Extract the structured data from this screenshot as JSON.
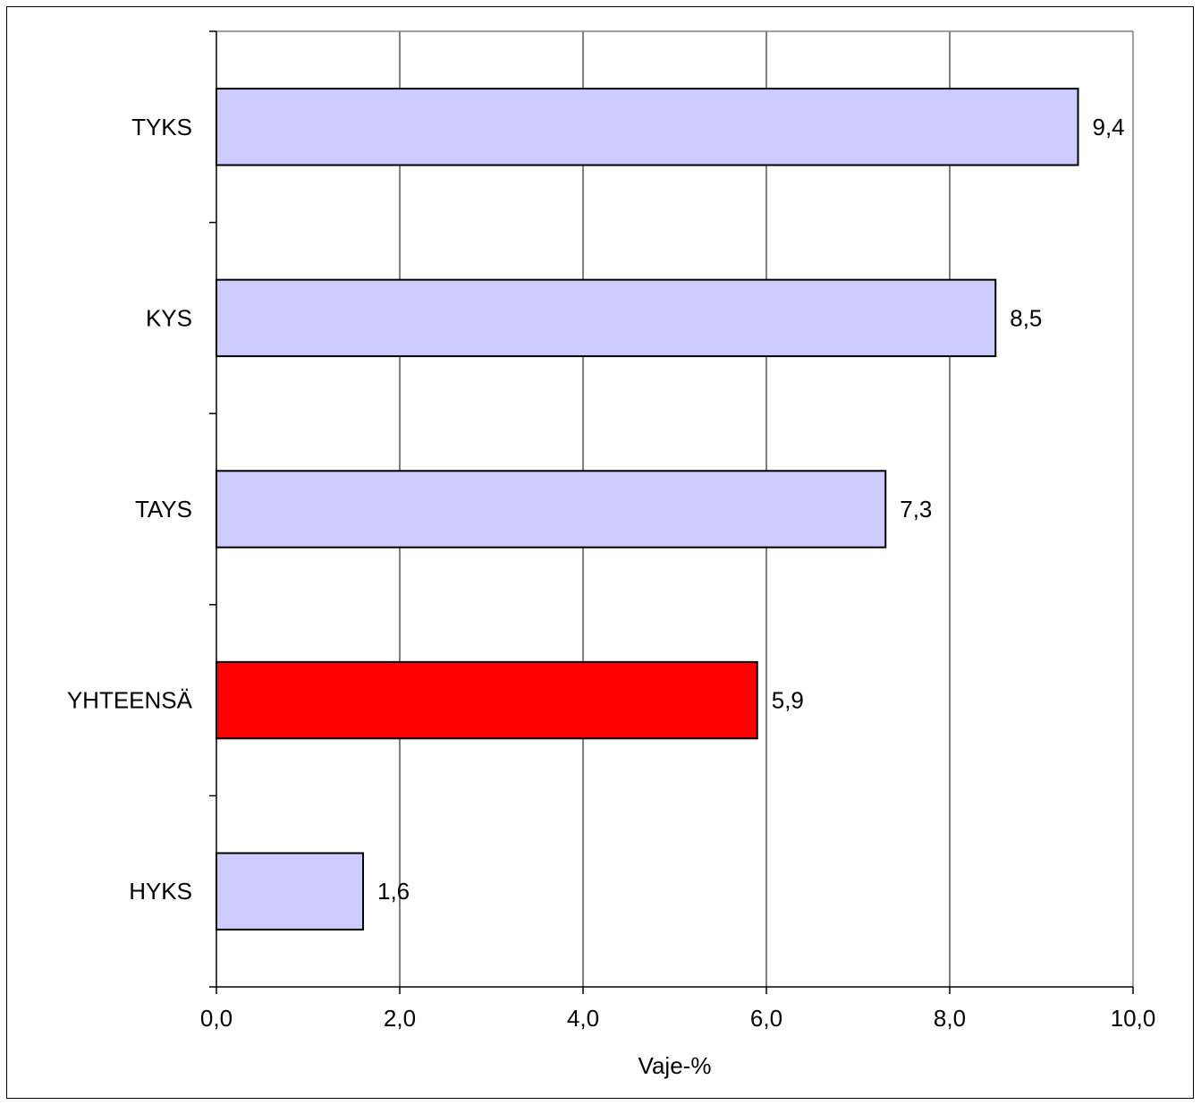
{
  "chart_data": {
    "type": "bar",
    "orientation": "horizontal",
    "title": "",
    "xlabel": "Vaje-%",
    "ylabel": "",
    "categories": [
      "TYKS",
      "KYS",
      "TAYS",
      "YHTEENSÄ",
      "HYKS"
    ],
    "values": [
      9.4,
      8.5,
      7.3,
      5.9,
      1.6
    ],
    "value_labels": [
      "9,4",
      "8,5",
      "7,3",
      "5,9",
      "1,6"
    ],
    "colors": [
      "#ccccff",
      "#ccccff",
      "#ccccff",
      "#ff0000",
      "#ccccff"
    ],
    "xlim": [
      0,
      10
    ],
    "x_ticks": [
      0,
      2,
      4,
      6,
      8,
      10
    ],
    "x_tick_labels": [
      "0,0",
      "2,0",
      "4,0",
      "6,0",
      "8,0",
      "10,0"
    ],
    "grid": "vertical",
    "legend": "none",
    "gridline_color": "#000000",
    "plot_border_color": "#808080"
  }
}
